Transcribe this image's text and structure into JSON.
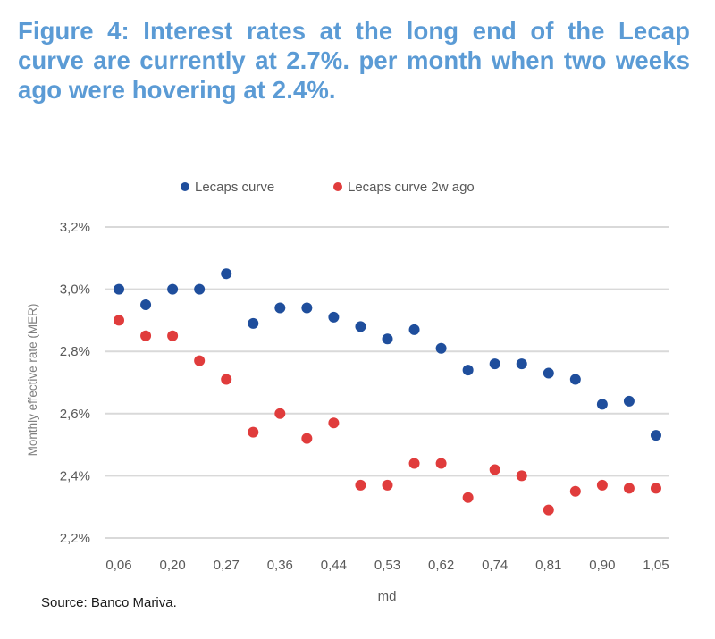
{
  "figure": {
    "title": "Figure 4: Interest rates at the long end of the Lecap curve are currently at 2.7%. per month when two weeks ago were hovering at 2.4%.",
    "source": "Source: Banco Mariva."
  },
  "chart_data": {
    "type": "scatter",
    "title": "",
    "xlabel": "md",
    "ylabel": "Monthly effective rate (MER)",
    "ylim": [
      2.2,
      3.2
    ],
    "yticks": [
      2.2,
      2.4,
      2.6,
      2.8,
      3.0,
      3.2
    ],
    "ytick_labels": [
      "2,2%",
      "2,4%",
      "2,6%",
      "2,8%",
      "3,0%",
      "3,2%"
    ],
    "grid": "horizontal",
    "legend_position": "top-center",
    "x_tick_labels": [
      "0,06",
      "0,20",
      "0,27",
      "0,36",
      "0,44",
      "0,53",
      "0,62",
      "0,74",
      "0,81",
      "0,90",
      "1,05"
    ],
    "x_tick_every": 2,
    "num_categories": 21,
    "series": [
      {
        "name": "Lecaps curve",
        "color": "#1f4e9c",
        "values": [
          3.0,
          2.95,
          3.0,
          3.0,
          3.05,
          2.89,
          2.94,
          2.94,
          2.91,
          2.88,
          2.84,
          2.87,
          2.81,
          2.74,
          2.76,
          2.76,
          2.73,
          2.71,
          2.63,
          2.64,
          2.53
        ]
      },
      {
        "name": "Lecaps curve 2w ago",
        "color": "#e03c3c",
        "values": [
          2.9,
          2.85,
          2.85,
          2.77,
          2.71,
          2.54,
          2.6,
          2.52,
          2.57,
          2.37,
          2.37,
          2.44,
          2.44,
          2.33,
          2.42,
          2.4,
          2.29,
          2.35,
          2.37,
          2.36,
          2.36
        ]
      }
    ]
  }
}
